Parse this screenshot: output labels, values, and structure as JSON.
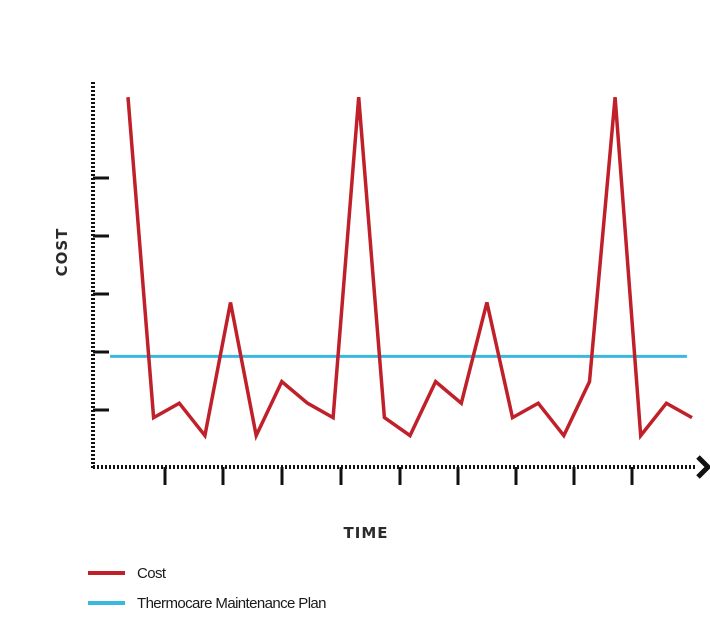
{
  "chart_data": {
    "type": "line",
    "xlabel": "TIME",
    "ylabel": "COST",
    "xlim": [
      0,
      22
    ],
    "ylim": [
      0,
      10.5
    ],
    "grid": false,
    "legend_position": "bottom-left",
    "series": [
      {
        "name": "Cost",
        "color": "#c0202a",
        "x": [
          0,
          1,
          2,
          3,
          4,
          5,
          6,
          7,
          8,
          9,
          10,
          11,
          12,
          13,
          14,
          15,
          16,
          17,
          18,
          19,
          20,
          21,
          22
        ],
        "y": [
          10.3,
          1.4,
          1.8,
          0.9,
          4.6,
          0.9,
          2.4,
          1.8,
          1.4,
          10.3,
          1.4,
          0.9,
          2.4,
          1.8,
          4.6,
          1.4,
          1.8,
          0.9,
          2.4,
          10.3,
          0.9,
          1.8,
          1.4
        ]
      },
      {
        "name": "Thermocare Maintenance Plan",
        "color": "#3bb8e0",
        "x": [
          -0.7,
          21.8
        ],
        "y": [
          3.1,
          3.1
        ]
      }
    ]
  }
}
